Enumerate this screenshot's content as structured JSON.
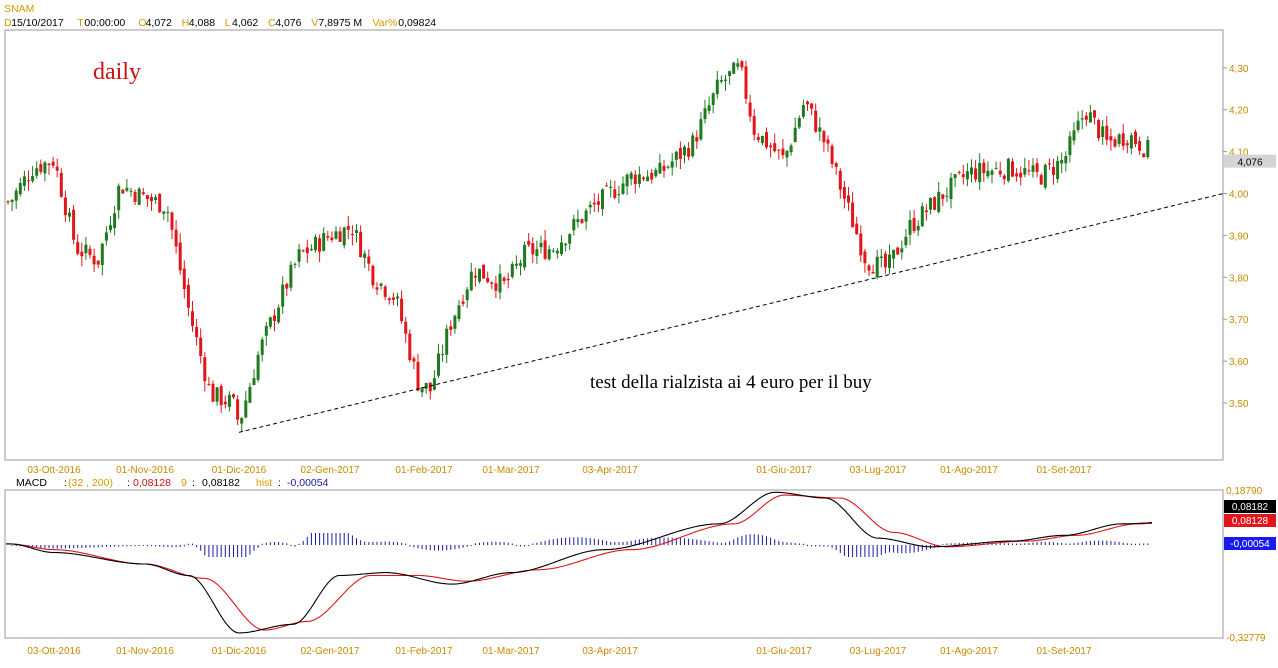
{
  "header": {
    "symbol": "SNAM",
    "fields": [
      {
        "key": "D",
        "value": "15/10/2017"
      },
      {
        "key": "T",
        "value": "00:00:00"
      },
      {
        "key": "O",
        "value": "4,072"
      },
      {
        "key": "H",
        "value": "4,088"
      },
      {
        "key": "L",
        "value": "4,062"
      },
      {
        "key": "C",
        "value": "4,076"
      },
      {
        "key": "V",
        "value": "7,8975 M"
      },
      {
        "key": "Var%",
        "value": "0,09824"
      }
    ]
  },
  "macd_header": {
    "name": "MACD",
    "params": "(32 , 200)",
    "macd_value": "0,08128",
    "signal_label": "9",
    "signal_value": "0,08182",
    "hist_label": "hist",
    "hist_value": "-0,00054"
  },
  "annotations": {
    "timeframe": "daily",
    "comment": "test della rialzista ai 4 euro per il buy"
  },
  "colors": {
    "up": "#1e7a1e",
    "down": "#e0161b",
    "macd_line": "#000000",
    "signal_line": "#e0161b",
    "hist": "#1a1aa6",
    "axis_text": "#c88a00",
    "header_key": "#d69a00"
  },
  "chart_data": [
    {
      "type": "candlestick",
      "title": "",
      "x_ticks": [
        "03-Ott-2016",
        "01-Nov-2016",
        "01-Dic-2016",
        "02-Gen-2017",
        "01-Feb-2017",
        "01-Mar-2017",
        "03-Apr-2017",
        "01-Giu-2017",
        "03-Lug-2017",
        "01-Ago-2017",
        "01-Set-2017"
      ],
      "y_ticks": [
        "3,50",
        "3,60",
        "3,70",
        "3,80",
        "3,90",
        "4,00",
        "4,10",
        "4,20",
        "4,30"
      ],
      "ylim": [
        3.38,
        4.37
      ],
      "last_price_label": "4,076",
      "last_price": 4.076,
      "close_anchors": [
        {
          "d": "2016-09-19",
          "c": 3.98
        },
        {
          "d": "2016-09-26",
          "c": 4.06
        },
        {
          "d": "2016-10-03",
          "c": 4.08
        },
        {
          "d": "2016-10-10",
          "c": 3.87
        },
        {
          "d": "2016-10-17",
          "c": 3.84
        },
        {
          "d": "2016-10-24",
          "c": 4.02
        },
        {
          "d": "2016-11-01",
          "c": 3.99
        },
        {
          "d": "2016-11-08",
          "c": 3.97
        },
        {
          "d": "2016-11-15",
          "c": 3.72
        },
        {
          "d": "2016-11-22",
          "c": 3.52
        },
        {
          "d": "2016-11-29",
          "c": 3.5
        },
        {
          "d": "2016-12-01",
          "c": 3.45
        },
        {
          "d": "2016-12-08",
          "c": 3.62
        },
        {
          "d": "2016-12-15",
          "c": 3.74
        },
        {
          "d": "2016-12-22",
          "c": 3.85
        },
        {
          "d": "2017-01-02",
          "c": 3.9
        },
        {
          "d": "2017-01-09",
          "c": 3.92
        },
        {
          "d": "2017-01-16",
          "c": 3.8
        },
        {
          "d": "2017-01-23",
          "c": 3.75
        },
        {
          "d": "2017-01-30",
          "c": 3.55
        },
        {
          "d": "2017-02-03",
          "c": 3.53
        },
        {
          "d": "2017-02-10",
          "c": 3.7
        },
        {
          "d": "2017-02-17",
          "c": 3.82
        },
        {
          "d": "2017-02-27",
          "c": 3.78
        },
        {
          "d": "2017-03-06",
          "c": 3.86
        },
        {
          "d": "2017-03-15",
          "c": 3.87
        },
        {
          "d": "2017-03-27",
          "c": 3.96
        },
        {
          "d": "2017-04-10",
          "c": 4.04
        },
        {
          "d": "2017-04-20",
          "c": 4.05
        },
        {
          "d": "2017-05-01",
          "c": 4.12
        },
        {
          "d": "2017-05-10",
          "c": 4.26
        },
        {
          "d": "2017-05-17",
          "c": 4.3
        },
        {
          "d": "2017-05-22",
          "c": 4.15
        },
        {
          "d": "2017-06-01",
          "c": 4.08
        },
        {
          "d": "2017-06-08",
          "c": 4.22
        },
        {
          "d": "2017-06-15",
          "c": 4.12
        },
        {
          "d": "2017-06-22",
          "c": 3.98
        },
        {
          "d": "2017-06-29",
          "c": 3.84
        },
        {
          "d": "2017-07-06",
          "c": 3.82
        },
        {
          "d": "2017-07-13",
          "c": 3.92
        },
        {
          "d": "2017-07-24",
          "c": 4.0
        },
        {
          "d": "2017-08-01",
          "c": 4.05
        },
        {
          "d": "2017-08-15",
          "c": 4.06
        },
        {
          "d": "2017-08-24",
          "c": 4.04
        },
        {
          "d": "2017-09-01",
          "c": 4.08
        },
        {
          "d": "2017-09-08",
          "c": 4.2
        },
        {
          "d": "2017-09-15",
          "c": 4.12
        },
        {
          "d": "2017-09-22",
          "c": 4.14
        },
        {
          "d": "2017-09-29",
          "c": 4.1
        },
        {
          "d": "2017-10-06",
          "c": 4.08
        },
        {
          "d": "2017-10-13",
          "c": 4.076
        }
      ],
      "trendline": {
        "from": {
          "d": "2016-12-01",
          "y": 3.43
        },
        "to": {
          "d": "2017-10-23",
          "y": 4.0
        },
        "style": "dashed"
      }
    },
    {
      "type": "line",
      "title": "",
      "y_ticks_top": "0,18790",
      "y_ticks_bottom": "-0,32779",
      "ylim": [
        -0.32779,
        0.1879
      ],
      "value_labels": {
        "signal": "0,08182",
        "macd": "0,08128",
        "hist": "-0,00054"
      },
      "x_ticks": [
        "03-Ott-2016",
        "01-Nov-2016",
        "01-Dic-2016",
        "02-Gen-2017",
        "01-Feb-2017",
        "01-Mar-2017",
        "03-Apr-2017",
        "01-Giu-2017",
        "03-Lug-2017",
        "01-Ago-2017",
        "01-Set-2017"
      ],
      "macd_anchors": [
        {
          "d": "2016-09-19",
          "v": 0.0
        },
        {
          "d": "2016-10-03",
          "v": -0.03
        },
        {
          "d": "2016-11-01",
          "v": -0.07
        },
        {
          "d": "2016-11-15",
          "v": -0.11
        },
        {
          "d": "2016-12-01",
          "v": -0.31
        },
        {
          "d": "2016-12-20",
          "v": -0.28
        },
        {
          "d": "2017-01-05",
          "v": -0.11
        },
        {
          "d": "2017-01-20",
          "v": -0.1
        },
        {
          "d": "2017-02-10",
          "v": -0.14
        },
        {
          "d": "2017-03-01",
          "v": -0.1
        },
        {
          "d": "2017-04-01",
          "v": -0.02
        },
        {
          "d": "2017-05-10",
          "v": 0.07
        },
        {
          "d": "2017-05-29",
          "v": 0.18
        },
        {
          "d": "2017-06-15",
          "v": 0.16
        },
        {
          "d": "2017-07-03",
          "v": 0.02
        },
        {
          "d": "2017-07-20",
          "v": -0.01
        },
        {
          "d": "2017-08-15",
          "v": 0.01
        },
        {
          "d": "2017-09-01",
          "v": 0.03
        },
        {
          "d": "2017-09-20",
          "v": 0.07
        },
        {
          "d": "2017-10-13",
          "v": 0.08128
        }
      ],
      "signal_anchors": [
        {
          "d": "2016-09-19",
          "v": 0.0
        },
        {
          "d": "2016-10-03",
          "v": -0.02
        },
        {
          "d": "2016-11-01",
          "v": -0.07
        },
        {
          "d": "2016-11-20",
          "v": -0.12
        },
        {
          "d": "2016-12-10",
          "v": -0.3
        },
        {
          "d": "2016-12-25",
          "v": -0.27
        },
        {
          "d": "2017-01-15",
          "v": -0.11
        },
        {
          "d": "2017-01-30",
          "v": -0.11
        },
        {
          "d": "2017-02-15",
          "v": -0.13
        },
        {
          "d": "2017-03-10",
          "v": -0.09
        },
        {
          "d": "2017-04-10",
          "v": -0.02
        },
        {
          "d": "2017-05-15",
          "v": 0.07
        },
        {
          "d": "2017-06-01",
          "v": 0.17
        },
        {
          "d": "2017-06-20",
          "v": 0.16
        },
        {
          "d": "2017-07-08",
          "v": 0.04
        },
        {
          "d": "2017-07-25",
          "v": -0.01
        },
        {
          "d": "2017-08-20",
          "v": 0.01
        },
        {
          "d": "2017-09-05",
          "v": 0.03
        },
        {
          "d": "2017-09-25",
          "v": 0.07
        },
        {
          "d": "2017-10-13",
          "v": 0.08182
        }
      ]
    }
  ]
}
